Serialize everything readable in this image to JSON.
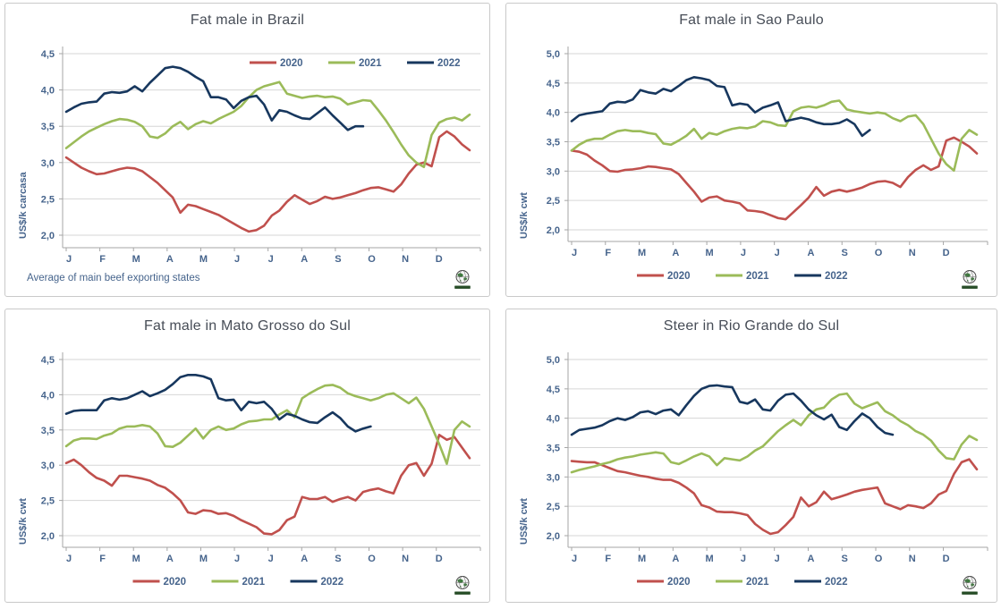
{
  "page": {
    "background": "#ffffff",
    "text_color": "#46648c",
    "title_color": "#474d57",
    "gridline_color": "#d6d6d6"
  },
  "colors": {
    "series_2020": "#c0504d",
    "series_2021": "#9bbb59",
    "series_2022": "#17375e"
  },
  "logo": {
    "icon": "globe-logo"
  },
  "chart_data": [
    {
      "type": "line",
      "title": "Fat male in Brazil",
      "ylabel": "US$/k carcasa",
      "footnote": "Average  of main beef exporting states",
      "ylim": [
        2.0,
        4.5
      ],
      "yticks": [
        2.0,
        2.5,
        3.0,
        3.5,
        4.0,
        4.5
      ],
      "ytick_labels": [
        "2,0",
        "2,5",
        "3,0",
        "3,5",
        "4,0",
        "4,5"
      ],
      "x_tick_labels": [
        "J",
        "F",
        "M",
        "A",
        "M",
        "J",
        "J",
        "A",
        "S",
        "O",
        "N",
        "D"
      ],
      "grid": true,
      "legend_position": "top-right",
      "series": [
        {
          "name": "2020",
          "color": "#c0504d",
          "values": [
            3.07,
            3.0,
            2.93,
            2.88,
            2.84,
            2.85,
            2.88,
            2.91,
            2.93,
            2.92,
            2.88,
            2.8,
            2.72,
            2.62,
            2.52,
            2.31,
            2.42,
            2.4,
            2.36,
            2.32,
            2.28,
            2.22,
            2.16,
            2.1,
            2.05,
            2.07,
            2.13,
            2.27,
            2.34,
            2.46,
            2.55,
            2.49,
            2.43,
            2.47,
            2.53,
            2.5,
            2.52,
            2.55,
            2.58,
            2.62,
            2.65,
            2.66,
            2.63,
            2.6,
            2.7,
            2.85,
            2.97,
            3.0,
            2.95,
            3.35,
            3.43,
            3.36,
            3.25,
            3.17
          ]
        },
        {
          "name": "2021",
          "color": "#9bbb59",
          "values": [
            3.2,
            3.28,
            3.36,
            3.43,
            3.48,
            3.53,
            3.57,
            3.6,
            3.59,
            3.56,
            3.5,
            3.36,
            3.34,
            3.4,
            3.5,
            3.56,
            3.46,
            3.53,
            3.57,
            3.54,
            3.6,
            3.65,
            3.7,
            3.78,
            3.9,
            4.0,
            4.05,
            4.08,
            4.11,
            3.95,
            3.92,
            3.89,
            3.91,
            3.92,
            3.9,
            3.91,
            3.88,
            3.8,
            3.83,
            3.86,
            3.85,
            3.72,
            3.58,
            3.42,
            3.25,
            3.1,
            3.0,
            2.94,
            3.38,
            3.55,
            3.6,
            3.62,
            3.58,
            3.66
          ]
        },
        {
          "name": "2022",
          "color": "#17375e",
          "values": [
            3.7,
            3.76,
            3.81,
            3.83,
            3.84,
            3.95,
            3.97,
            3.96,
            3.98,
            4.05,
            3.98,
            4.1,
            4.2,
            4.3,
            4.32,
            4.3,
            4.25,
            4.18,
            4.12,
            3.9,
            3.9,
            3.87,
            3.75,
            3.85,
            3.9,
            3.92,
            3.8,
            3.58,
            3.72,
            3.7,
            3.65,
            3.61,
            3.6,
            3.68,
            3.76,
            3.65,
            3.55,
            3.45,
            3.5,
            3.5
          ]
        }
      ]
    },
    {
      "type": "line",
      "title": "Fat male in Sao Paulo",
      "ylabel": "US$/k cwt",
      "ylim": [
        2.0,
        5.0
      ],
      "yticks": [
        2.0,
        2.5,
        3.0,
        3.5,
        4.0,
        4.5,
        5.0
      ],
      "ytick_labels": [
        "2,0",
        "2,5",
        "3,0",
        "3,5",
        "4,0",
        "4,5",
        "5,0"
      ],
      "x_tick_labels": [
        "J",
        "F",
        "M",
        "A",
        "M",
        "J",
        "J",
        "A",
        "S",
        "O",
        "N",
        "D"
      ],
      "grid": true,
      "legend_position": "bottom",
      "series": [
        {
          "name": "2020",
          "color": "#c0504d",
          "values": [
            3.35,
            3.33,
            3.28,
            3.18,
            3.1,
            3.0,
            2.99,
            3.02,
            3.03,
            3.05,
            3.08,
            3.07,
            3.05,
            3.03,
            2.95,
            2.8,
            2.65,
            2.48,
            2.55,
            2.57,
            2.5,
            2.48,
            2.45,
            2.33,
            2.32,
            2.3,
            2.25,
            2.2,
            2.18,
            2.3,
            2.42,
            2.55,
            2.73,
            2.58,
            2.65,
            2.68,
            2.65,
            2.68,
            2.72,
            2.78,
            2.82,
            2.83,
            2.8,
            2.73,
            2.9,
            3.02,
            3.1,
            3.02,
            3.08,
            3.52,
            3.57,
            3.5,
            3.42,
            3.3
          ]
        },
        {
          "name": "2021",
          "color": "#9bbb59",
          "values": [
            3.35,
            3.45,
            3.52,
            3.55,
            3.55,
            3.62,
            3.68,
            3.7,
            3.68,
            3.68,
            3.65,
            3.63,
            3.47,
            3.45,
            3.52,
            3.6,
            3.72,
            3.55,
            3.65,
            3.62,
            3.68,
            3.72,
            3.74,
            3.73,
            3.76,
            3.85,
            3.83,
            3.78,
            3.77,
            4.02,
            4.08,
            4.1,
            4.08,
            4.12,
            4.18,
            4.2,
            4.05,
            4.02,
            4.0,
            3.98,
            4.0,
            3.98,
            3.9,
            3.85,
            3.93,
            3.95,
            3.8,
            3.55,
            3.3,
            3.12,
            3.01,
            3.55,
            3.7,
            3.62
          ]
        },
        {
          "name": "2022",
          "color": "#17375e",
          "values": [
            3.85,
            3.95,
            3.98,
            4.0,
            4.02,
            4.15,
            4.18,
            4.17,
            4.22,
            4.38,
            4.34,
            4.32,
            4.4,
            4.36,
            4.45,
            4.55,
            4.6,
            4.58,
            4.55,
            4.45,
            4.43,
            4.12,
            4.15,
            4.13,
            4.0,
            4.08,
            4.12,
            4.17,
            3.85,
            3.88,
            3.91,
            3.88,
            3.83,
            3.8,
            3.8,
            3.82,
            3.88,
            3.8,
            3.6,
            3.7
          ]
        }
      ]
    },
    {
      "type": "line",
      "title": "Fat male in Mato Grosso do Sul",
      "ylabel": "US$/k cwt",
      "ylim": [
        2.0,
        4.5
      ],
      "yticks": [
        2.0,
        2.5,
        3.0,
        3.5,
        4.0,
        4.5
      ],
      "ytick_labels": [
        "2,0",
        "2,5",
        "3,0",
        "3,5",
        "4,0",
        "4,5"
      ],
      "x_tick_labels": [
        "J",
        "F",
        "M",
        "A",
        "M",
        "J",
        "J",
        "A",
        "S",
        "O",
        "N",
        "D"
      ],
      "grid": true,
      "legend_position": "bottom",
      "series": [
        {
          "name": "2020",
          "color": "#c0504d",
          "values": [
            3.03,
            3.08,
            3.0,
            2.9,
            2.82,
            2.78,
            2.71,
            2.85,
            2.85,
            2.83,
            2.81,
            2.78,
            2.72,
            2.68,
            2.6,
            2.5,
            2.33,
            2.31,
            2.36,
            2.35,
            2.31,
            2.32,
            2.28,
            2.22,
            2.17,
            2.12,
            2.03,
            2.02,
            2.08,
            2.22,
            2.27,
            2.55,
            2.52,
            2.52,
            2.55,
            2.48,
            2.52,
            2.55,
            2.5,
            2.62,
            2.65,
            2.67,
            2.63,
            2.6,
            2.85,
            3.0,
            3.03,
            2.85,
            3.02,
            3.43,
            3.36,
            3.4,
            3.25,
            3.1
          ]
        },
        {
          "name": "2021",
          "color": "#9bbb59",
          "values": [
            3.27,
            3.35,
            3.38,
            3.38,
            3.37,
            3.42,
            3.45,
            3.52,
            3.55,
            3.55,
            3.57,
            3.55,
            3.45,
            3.27,
            3.26,
            3.32,
            3.42,
            3.52,
            3.38,
            3.5,
            3.55,
            3.5,
            3.52,
            3.58,
            3.62,
            3.63,
            3.65,
            3.65,
            3.72,
            3.78,
            3.68,
            3.95,
            4.02,
            4.08,
            4.13,
            4.14,
            4.1,
            4.02,
            3.98,
            3.95,
            3.92,
            3.95,
            4.0,
            4.02,
            3.95,
            3.88,
            3.96,
            3.8,
            3.55,
            3.3,
            3.02,
            3.5,
            3.62,
            3.55
          ]
        },
        {
          "name": "2022",
          "color": "#17375e",
          "values": [
            3.73,
            3.77,
            3.78,
            3.78,
            3.78,
            3.92,
            3.95,
            3.93,
            3.95,
            4.0,
            4.05,
            3.98,
            4.02,
            4.07,
            4.15,
            4.25,
            4.28,
            4.28,
            4.26,
            4.22,
            3.95,
            3.92,
            3.93,
            3.78,
            3.9,
            3.88,
            3.9,
            3.8,
            3.65,
            3.73,
            3.7,
            3.65,
            3.61,
            3.6,
            3.68,
            3.75,
            3.67,
            3.55,
            3.48,
            3.52,
            3.55
          ]
        }
      ]
    },
    {
      "type": "line",
      "title": "Steer  in Rio Grande do Sul",
      "ylabel": "US$/k cwt",
      "ylim": [
        2.0,
        5.0
      ],
      "yticks": [
        2.0,
        2.5,
        3.0,
        3.5,
        4.0,
        4.5,
        5.0
      ],
      "ytick_labels": [
        "2,0",
        "2,5",
        "3,0",
        "3,5",
        "4,0",
        "4,5",
        "5,0"
      ],
      "x_tick_labels": [
        "J",
        "F",
        "M",
        "A",
        "M",
        "J",
        "J",
        "A",
        "S",
        "O",
        "N",
        "D"
      ],
      "grid": true,
      "legend_position": "bottom",
      "series": [
        {
          "name": "2020",
          "color": "#c0504d",
          "values": [
            3.27,
            3.26,
            3.25,
            3.25,
            3.2,
            3.15,
            3.1,
            3.08,
            3.05,
            3.02,
            3.0,
            2.97,
            2.95,
            2.95,
            2.9,
            2.82,
            2.72,
            2.52,
            2.48,
            2.41,
            2.4,
            2.4,
            2.38,
            2.35,
            2.2,
            2.1,
            2.03,
            2.06,
            2.18,
            2.32,
            2.65,
            2.5,
            2.57,
            2.75,
            2.62,
            2.66,
            2.7,
            2.75,
            2.78,
            2.8,
            2.82,
            2.55,
            2.5,
            2.45,
            2.52,
            2.5,
            2.47,
            2.55,
            2.7,
            2.76,
            3.05,
            3.25,
            3.3,
            3.13
          ]
        },
        {
          "name": "2021",
          "color": "#9bbb59",
          "values": [
            3.08,
            3.12,
            3.15,
            3.18,
            3.22,
            3.25,
            3.3,
            3.33,
            3.35,
            3.38,
            3.4,
            3.42,
            3.4,
            3.25,
            3.22,
            3.28,
            3.35,
            3.4,
            3.35,
            3.2,
            3.32,
            3.3,
            3.28,
            3.35,
            3.45,
            3.52,
            3.65,
            3.78,
            3.88,
            3.97,
            3.88,
            4.05,
            4.15,
            4.18,
            4.32,
            4.4,
            4.42,
            4.25,
            4.17,
            4.22,
            4.27,
            4.12,
            4.05,
            3.95,
            3.88,
            3.78,
            3.72,
            3.62,
            3.45,
            3.32,
            3.3,
            3.55,
            3.7,
            3.63
          ]
        },
        {
          "name": "2022",
          "color": "#17375e",
          "values": [
            3.72,
            3.8,
            3.82,
            3.84,
            3.88,
            3.95,
            4.0,
            3.97,
            4.02,
            4.1,
            4.12,
            4.07,
            4.13,
            4.15,
            4.05,
            4.22,
            4.38,
            4.5,
            4.55,
            4.56,
            4.54,
            4.53,
            4.28,
            4.25,
            4.32,
            4.15,
            4.13,
            4.3,
            4.4,
            4.42,
            4.3,
            4.15,
            4.05,
            3.98,
            4.06,
            3.85,
            3.8,
            3.95,
            4.08,
            4.0,
            3.85,
            3.75,
            3.72
          ]
        }
      ]
    }
  ]
}
